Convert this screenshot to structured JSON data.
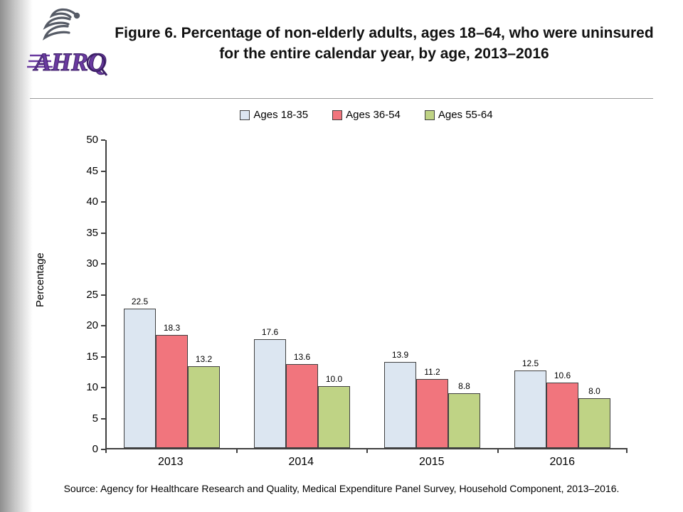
{
  "header": {
    "logo_text": "AHRQ",
    "title": "Figure 6. Percentage of non-elderly adults, ages 18–64, who were uninsured for the entire calendar year, by age, 2013–2016"
  },
  "chart_data": {
    "type": "bar",
    "title": "Figure 6. Percentage of non-elderly adults, ages 18–64, who were uninsured for the entire calendar year, by age, 2013–2016",
    "categories": [
      "2013",
      "2014",
      "2015",
      "2016"
    ],
    "series": [
      {
        "name": "Ages 18-35",
        "color": "#dce6f1",
        "values": [
          22.5,
          17.6,
          13.9,
          12.5
        ]
      },
      {
        "name": "Ages 36-54",
        "color": "#f1757d",
        "values": [
          18.3,
          13.6,
          11.2,
          10.6
        ]
      },
      {
        "name": "Ages 55-64",
        "color": "#bfd385",
        "values": [
          13.2,
          10.0,
          8.8,
          8.0
        ]
      }
    ],
    "xlabel": "",
    "ylabel": "Percentage",
    "ylim": [
      0,
      50
    ],
    "ytick_step": 5,
    "grid": false,
    "legend_position": "top",
    "value_label_decimals": 1,
    "bar_border_color": "#404040"
  },
  "footer": {
    "source": "Source: Agency for Healthcare Research and Quality, Medical Expenditure Panel Survey, Household Component, 2013–2016."
  }
}
